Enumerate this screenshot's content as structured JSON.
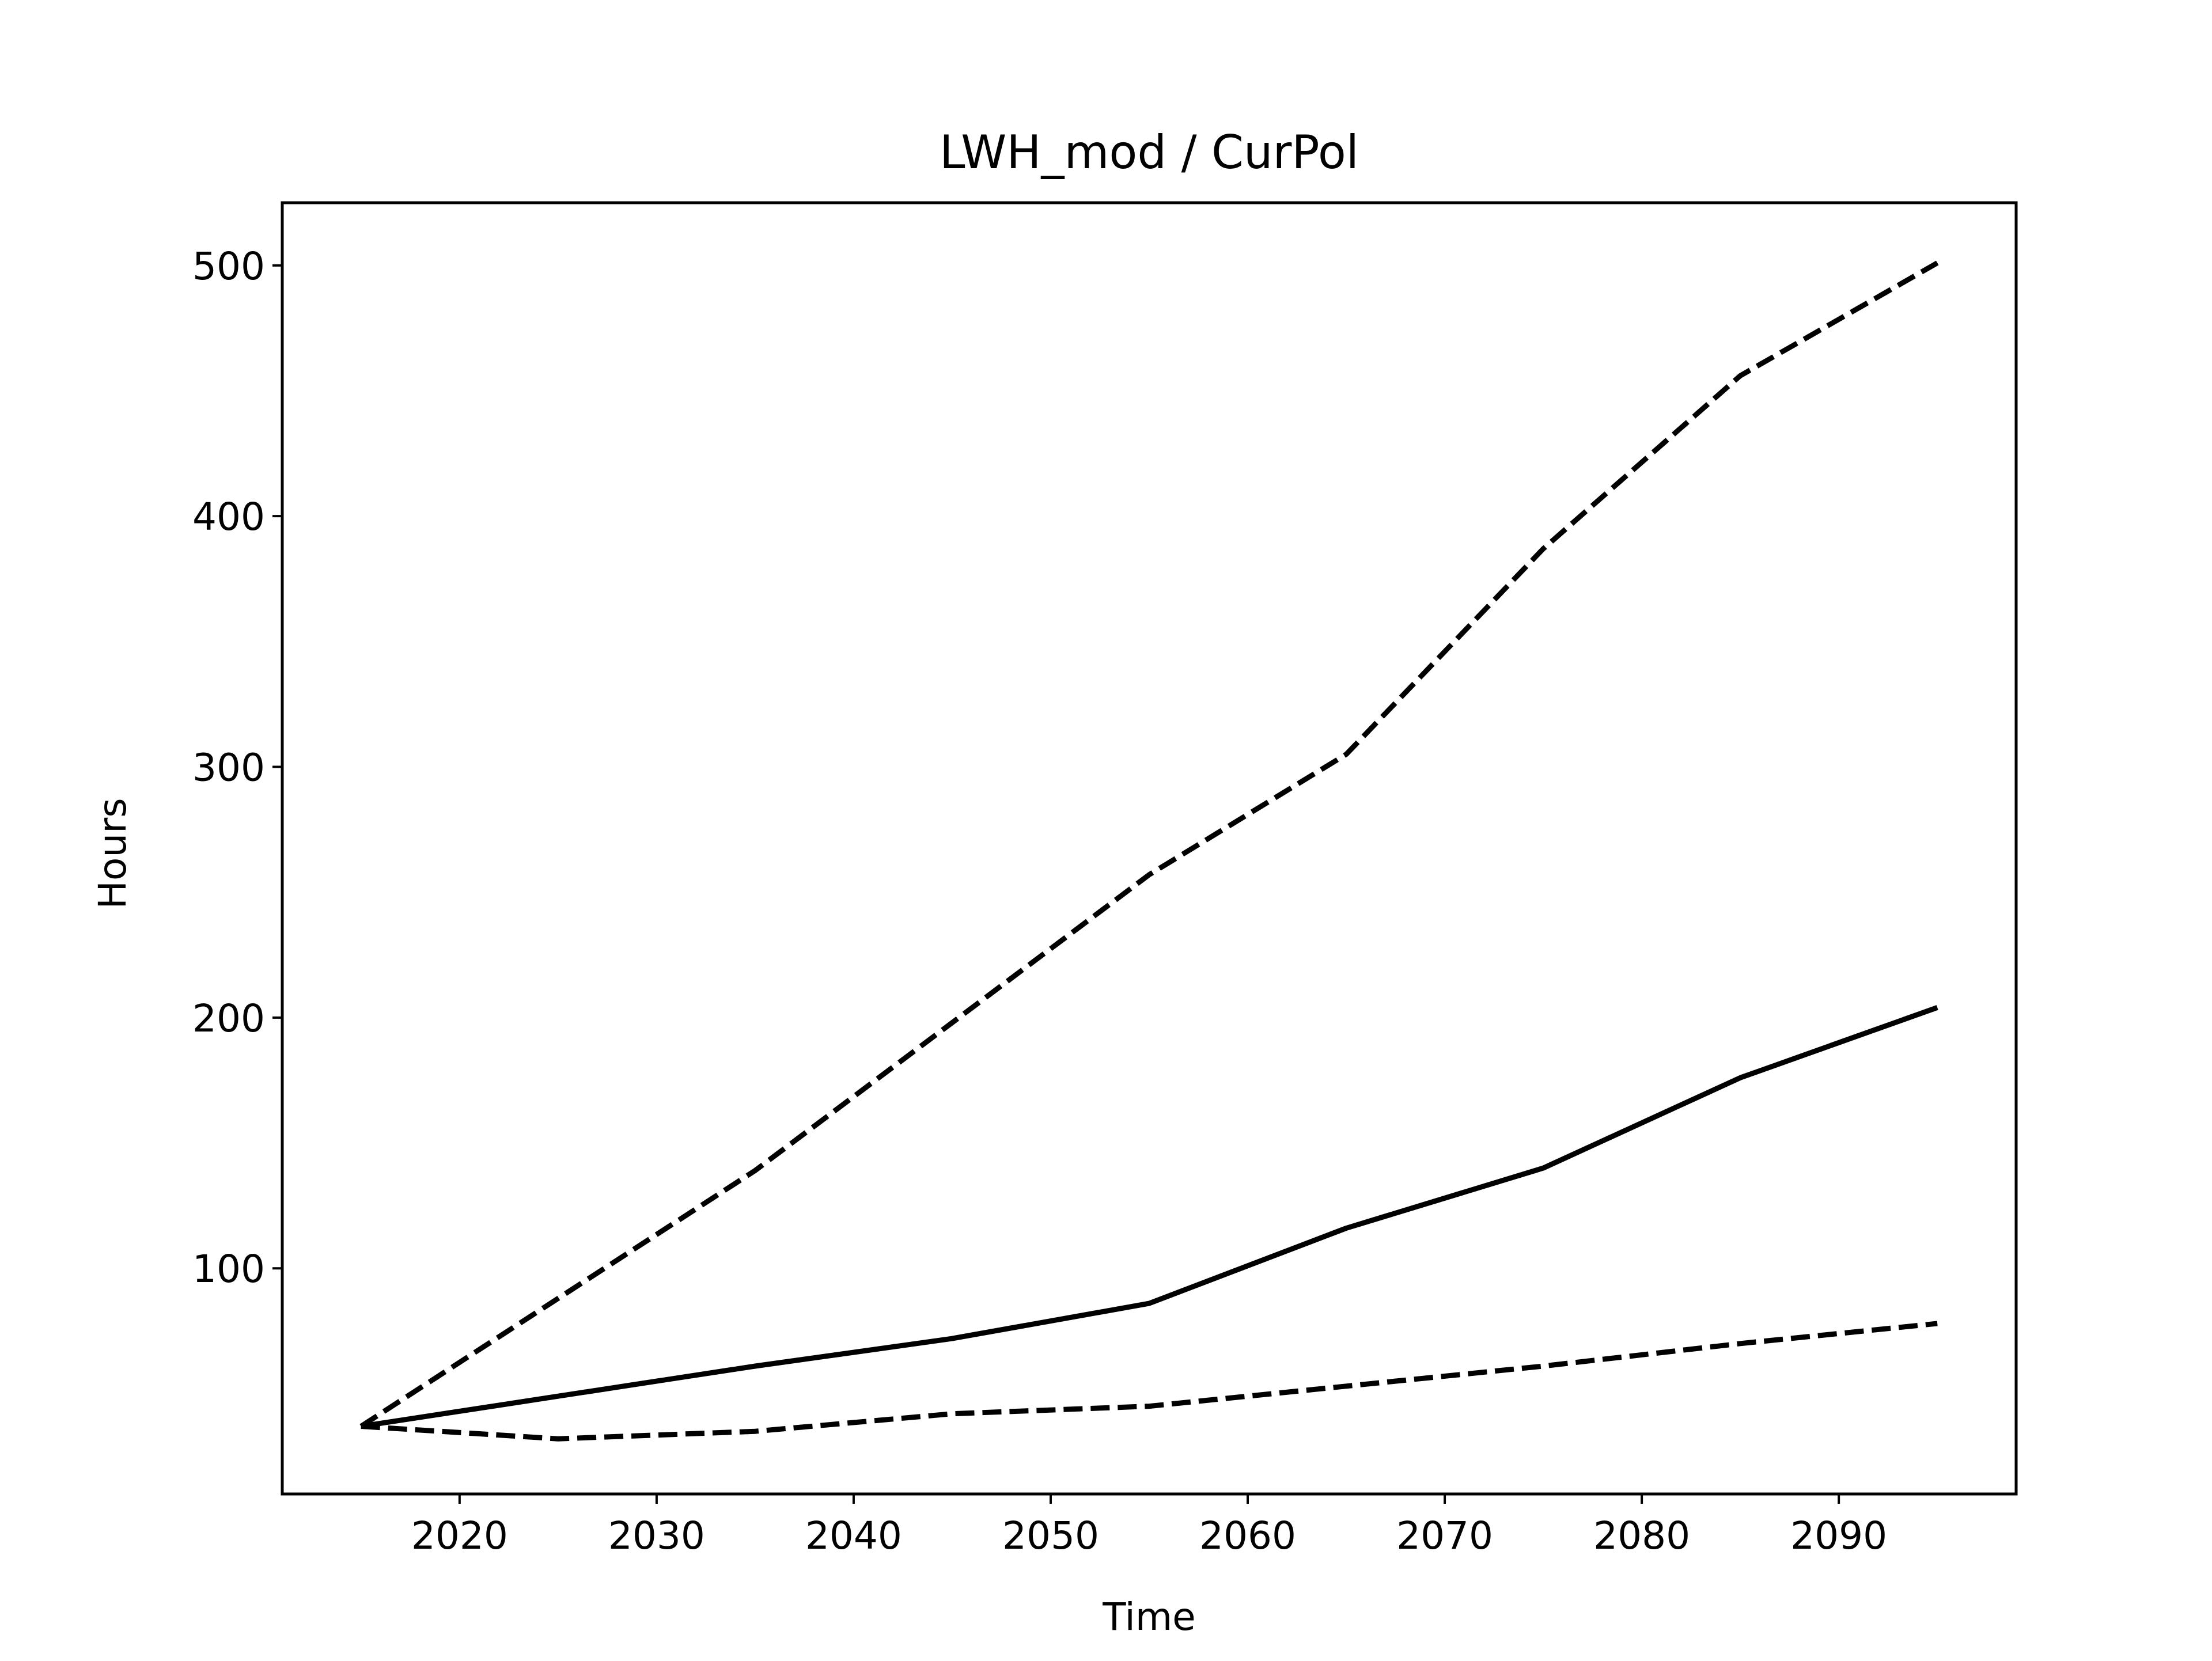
{
  "chart_data": {
    "type": "line",
    "title": "LWH_mod / CurPol",
    "xlabel": "Time",
    "ylabel": "Hours",
    "xlim": [
      2011,
      2099
    ],
    "ylim": [
      10,
      525
    ],
    "xticks": [
      2020,
      2030,
      2040,
      2050,
      2060,
      2070,
      2080,
      2090
    ],
    "yticks": [
      100,
      200,
      300,
      400,
      500
    ],
    "grid": false,
    "legend": false,
    "x": [
      2015,
      2025,
      2035,
      2045,
      2055,
      2065,
      2075,
      2085,
      2095
    ],
    "series": [
      {
        "style": "solid",
        "color": "#000000",
        "values": [
          37,
          49,
          61,
          72,
          86,
          116,
          140,
          176,
          204
        ]
      },
      {
        "style": "dashed",
        "color": "#000000",
        "values": [
          37,
          88,
          139,
          198,
          257,
          305,
          387,
          456,
          501
        ]
      },
      {
        "style": "dashed",
        "color": "#000000",
        "values": [
          37,
          32,
          35,
          42,
          45,
          53,
          61,
          70,
          78
        ]
      }
    ]
  }
}
